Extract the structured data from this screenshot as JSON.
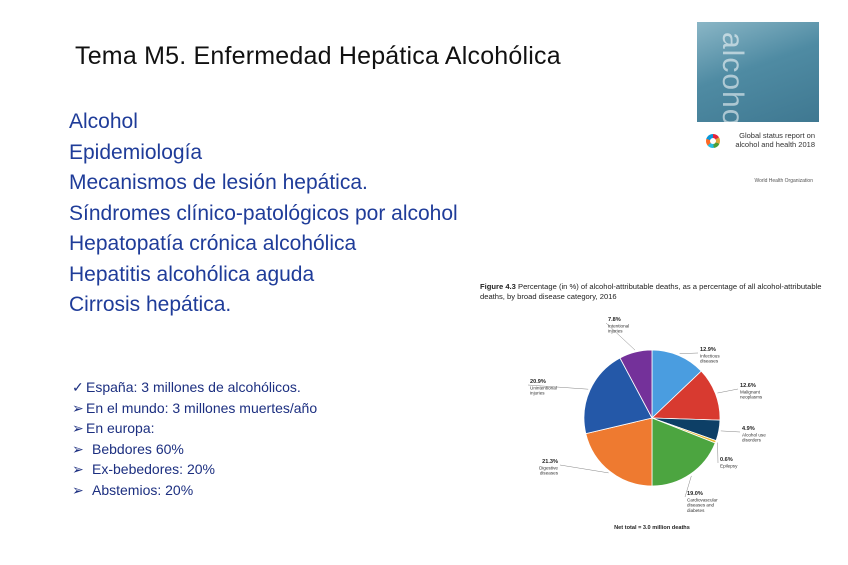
{
  "slide": {
    "title": "Tema M5. Enfermedad Hepática Alcohólica",
    "topics": [
      "Alcohol",
      "Epidemiología",
      "Mecanismos de lesión hepática.",
      "Síndromes clínico-patológicos por alcohol",
      "Hepatopatía crónica alcohólica",
      "Hepatitis alcohólica aguda",
      "Cirrosis hepática."
    ],
    "stats": [
      {
        "marker": "✓",
        "text": "España: 3 millones de alcohólicos."
      },
      {
        "marker": "➢",
        "text": "En el mundo: 3 millones muertes/año"
      },
      {
        "marker": "➢",
        "text": "En europa:"
      },
      {
        "marker": "➢",
        "text": "Bebdores 60%"
      },
      {
        "marker": "➢",
        "text": "Ex-bebedores: 20%"
      },
      {
        "marker": "➢",
        "text": "Abstemios: 20%"
      }
    ]
  },
  "cover": {
    "word": "alcohol",
    "title_text": "Global status report on alcohol and health 2018",
    "publisher_mark": "World Health Organization",
    "logo_icon": "sdg-wheel-icon"
  },
  "figure": {
    "label": "Figure 4.3",
    "caption": "Percentage (in %) of alcohol-attributable deaths, as a percentage of all alcohol-attributable deaths, by broad disease category, 2016"
  },
  "chart_data": {
    "type": "pie",
    "title": "Figure 4.3 Percentage (in %) of alcohol-attributable deaths, as a percentage of all alcohol-attributable deaths, by broad disease category, 2016",
    "footer": "Net total = 3.0 million deaths",
    "slices": [
      {
        "label": "Infectious diseases",
        "value": 12.9,
        "value_label": "12.9%",
        "color": "#4a9de0"
      },
      {
        "label": "Malignant neoplasms",
        "value": 12.6,
        "value_label": "12.6%",
        "color": "#d83a30"
      },
      {
        "label": "Alcohol use disorders",
        "value": 4.9,
        "value_label": "4.9%",
        "color": "#0d3f66"
      },
      {
        "label": "Epilepsy",
        "value": 0.6,
        "value_label": "0.6%",
        "color": "#e8b830"
      },
      {
        "label": "Cardiovascular diseases and diabetes",
        "value": 19.0,
        "value_label": "19.0%",
        "color": "#4ca540"
      },
      {
        "label": "Digestive diseases",
        "value": 21.3,
        "value_label": "21.3%",
        "color": "#ee7a30"
      },
      {
        "label": "Unintentional injuries",
        "value": 20.9,
        "value_label": "20.9%",
        "color": "#2458a8"
      },
      {
        "label": "Intentional injuries",
        "value": 7.8,
        "value_label": "7.8%",
        "color": "#74319a"
      }
    ]
  }
}
